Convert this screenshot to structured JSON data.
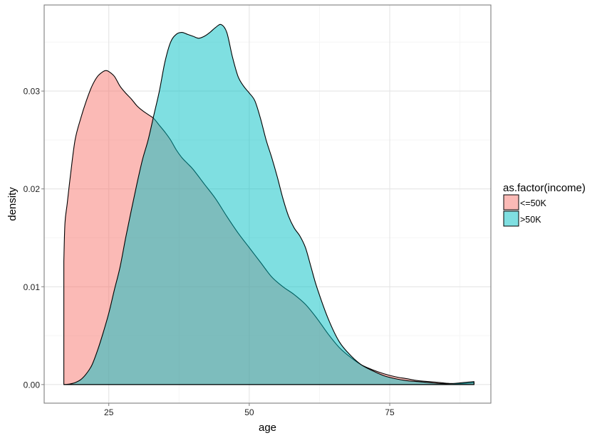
{
  "chart_data": {
    "type": "area",
    "subtype": "density",
    "title": "",
    "xlabel": "age",
    "ylabel": "density",
    "xlim": [
      13.5,
      93
    ],
    "ylim": [
      -0.0019,
      0.0388
    ],
    "x_ticks": [
      25,
      50,
      75
    ],
    "x_tick_labels": [
      "25",
      "50",
      "75"
    ],
    "y_ticks": [
      0.0,
      0.01,
      0.02,
      0.03
    ],
    "y_tick_labels": [
      "0.00",
      "0.01",
      "0.02",
      "0.03"
    ],
    "grid": true,
    "legend": {
      "title": "as.factor(income)",
      "position": "right",
      "entries": [
        "<=50K",
        ">50K"
      ]
    },
    "series": [
      {
        "name": "<=50K",
        "color": "#F8766D",
        "fill_alpha": 0.5,
        "x": [
          17,
          17.2,
          17.6,
          18.2,
          19,
          20,
          21,
          22,
          23,
          24,
          24.5,
          25,
          26,
          27,
          28,
          29,
          30,
          31,
          32,
          33,
          34,
          35,
          36,
          37,
          38,
          39,
          40,
          42,
          44,
          46,
          48,
          50,
          52,
          54,
          56,
          58,
          60,
          62,
          64,
          66,
          68,
          70,
          72,
          74,
          76,
          78,
          80,
          82,
          84,
          86,
          88,
          90
        ],
        "y": [
          0.0126,
          0.0165,
          0.0185,
          0.0215,
          0.025,
          0.0272,
          0.029,
          0.0305,
          0.0315,
          0.032,
          0.0321,
          0.032,
          0.0315,
          0.0305,
          0.0298,
          0.0292,
          0.0285,
          0.028,
          0.0276,
          0.0272,
          0.0265,
          0.0258,
          0.025,
          0.024,
          0.0232,
          0.0226,
          0.022,
          0.0205,
          0.019,
          0.0172,
          0.0155,
          0.014,
          0.0125,
          0.011,
          0.01,
          0.0092,
          0.0082,
          0.0068,
          0.0052,
          0.0038,
          0.0028,
          0.002,
          0.0015,
          0.0011,
          0.0008,
          0.0006,
          0.0004,
          0.0003,
          0.0002,
          0.0001,
          0.0001,
          0.0002
        ]
      },
      {
        "name": ">50K",
        "color": "#00BFC4",
        "fill_alpha": 0.5,
        "x": [
          17,
          18,
          19,
          20,
          21,
          22,
          23,
          24,
          25,
          26,
          27,
          28,
          29,
          30,
          31,
          32,
          33,
          34,
          35,
          36,
          37,
          38,
          39,
          40,
          41,
          42,
          43,
          44,
          45,
          46,
          47,
          48,
          49,
          50,
          51,
          52,
          53,
          54,
          55,
          56,
          57,
          58,
          59,
          60,
          61,
          62,
          64,
          66,
          68,
          70,
          72,
          74,
          76,
          78,
          80,
          82,
          84,
          86,
          88,
          90
        ],
        "y": [
          0.0,
          5e-05,
          0.0002,
          0.0005,
          0.0011,
          0.002,
          0.0035,
          0.0053,
          0.0073,
          0.0097,
          0.012,
          0.015,
          0.0178,
          0.0205,
          0.023,
          0.025,
          0.0275,
          0.03,
          0.033,
          0.035,
          0.0358,
          0.036,
          0.0358,
          0.0356,
          0.0354,
          0.0356,
          0.036,
          0.0365,
          0.0368,
          0.036,
          0.0335,
          0.0315,
          0.0305,
          0.0298,
          0.029,
          0.0272,
          0.025,
          0.0232,
          0.0212,
          0.019,
          0.0172,
          0.016,
          0.0152,
          0.014,
          0.012,
          0.01,
          0.0068,
          0.0044,
          0.003,
          0.002,
          0.0014,
          0.0009,
          0.0006,
          0.0004,
          0.0003,
          0.0002,
          0.0001,
          0.0001,
          0.0002,
          0.0003
        ]
      }
    ]
  },
  "colors": {
    "panel_border": "#7F7F7F",
    "grid_major": "#E5E5E5",
    "grid_minor": "#F5F5F5",
    "outline": "#000000"
  }
}
